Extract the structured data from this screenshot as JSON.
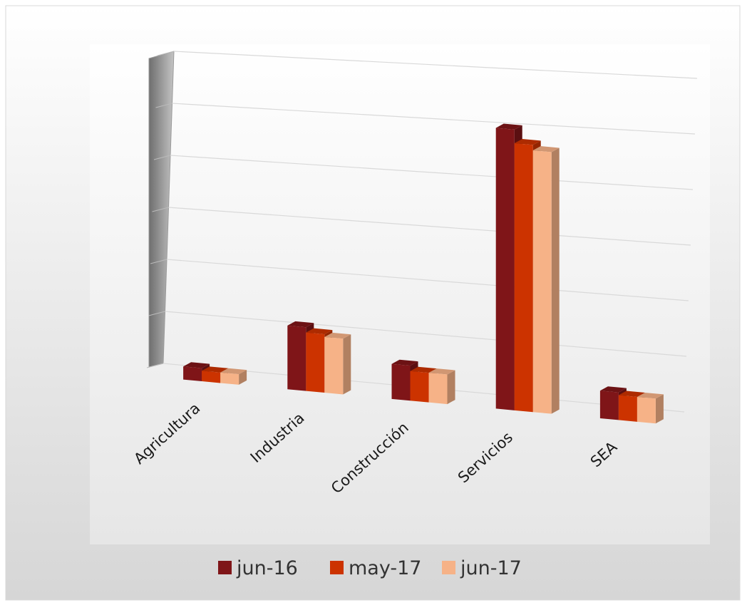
{
  "chart_data": {
    "type": "bar",
    "view": "3d-perspective",
    "categories": [
      "Agricultura",
      "Industria",
      "Construcción",
      "Servicios",
      "SEA"
    ],
    "series": [
      {
        "name": "jun-16",
        "color": "#7f1518",
        "values": [
          5,
          24,
          13,
          103,
          10
        ]
      },
      {
        "name": "may-17",
        "color": "#cc3300",
        "values": [
          4,
          22,
          11,
          98,
          9
        ]
      },
      {
        "name": "jun-17",
        "color": "#f6b287",
        "values": [
          4,
          21,
          11,
          96,
          9
        ]
      }
    ],
    "ylim": [
      0,
      120
    ],
    "grid": true,
    "y_tick_labels_shown": false,
    "legend": "bottom",
    "background": "gradient-gray"
  }
}
